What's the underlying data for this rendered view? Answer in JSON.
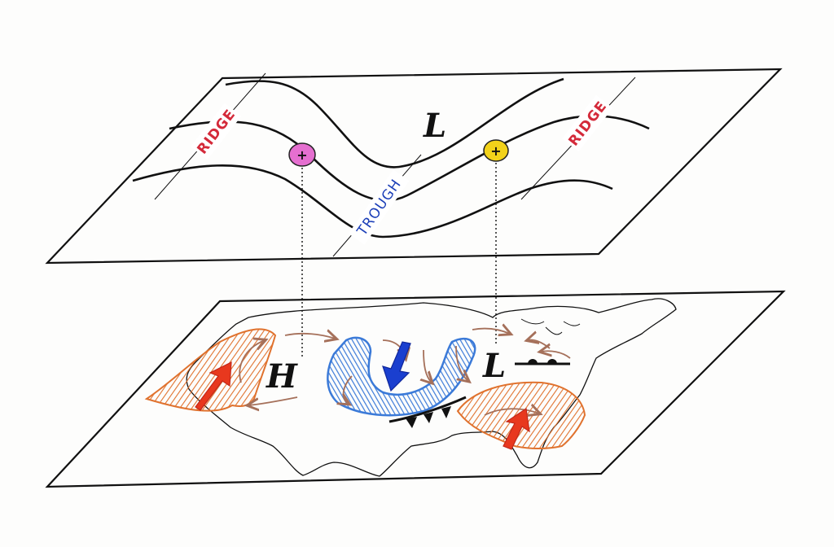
{
  "upper_level": {
    "ridge_west_label": "RIDGE",
    "ridge_east_label": "RIDGE",
    "trough_label": "TROUGH",
    "low_label": "L",
    "divergence_symbol": "+",
    "convergence_symbol": "+"
  },
  "surface": {
    "high_label": "H",
    "low_label": "L"
  },
  "colors": {
    "ridge_text": "#d42a3a",
    "trough_text": "#1c3fb8",
    "divergence_marker": "#e56fd0",
    "convergence_marker": "#f2d21a",
    "cold_air": "#3b7ad8",
    "warm_air": "#e0722e",
    "warm_arrow": "#e8381e",
    "cold_arrow": "#1a3fcf",
    "wind_arrows": "#a5705a",
    "outline": "#111111"
  }
}
